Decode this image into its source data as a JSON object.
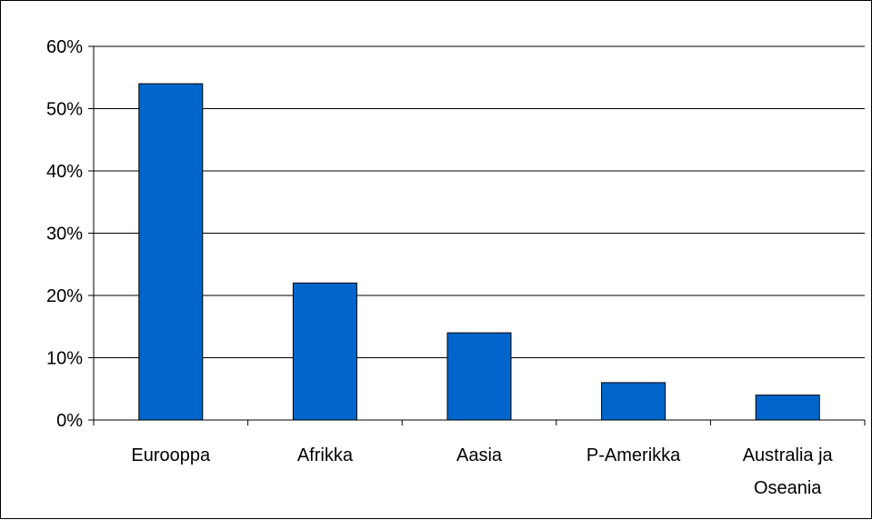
{
  "chart_data": {
    "type": "bar",
    "categories": [
      [
        "Eurooppa"
      ],
      [
        "Afrikka"
      ],
      [
        "Aasia"
      ],
      [
        "P-Amerikka"
      ],
      [
        "Australia ja",
        "Oseania"
      ]
    ],
    "values": [
      0.54,
      0.22,
      0.14,
      0.06,
      0.04
    ],
    "yticks": [
      "0%",
      "10%",
      "20%",
      "30%",
      "40%",
      "50%",
      "60%"
    ],
    "ylim": [
      0,
      0.6
    ],
    "grid": true,
    "bar_color": "#0066cc",
    "bar_edge_color": "#000000",
    "title": "",
    "xlabel": "",
    "ylabel": ""
  }
}
